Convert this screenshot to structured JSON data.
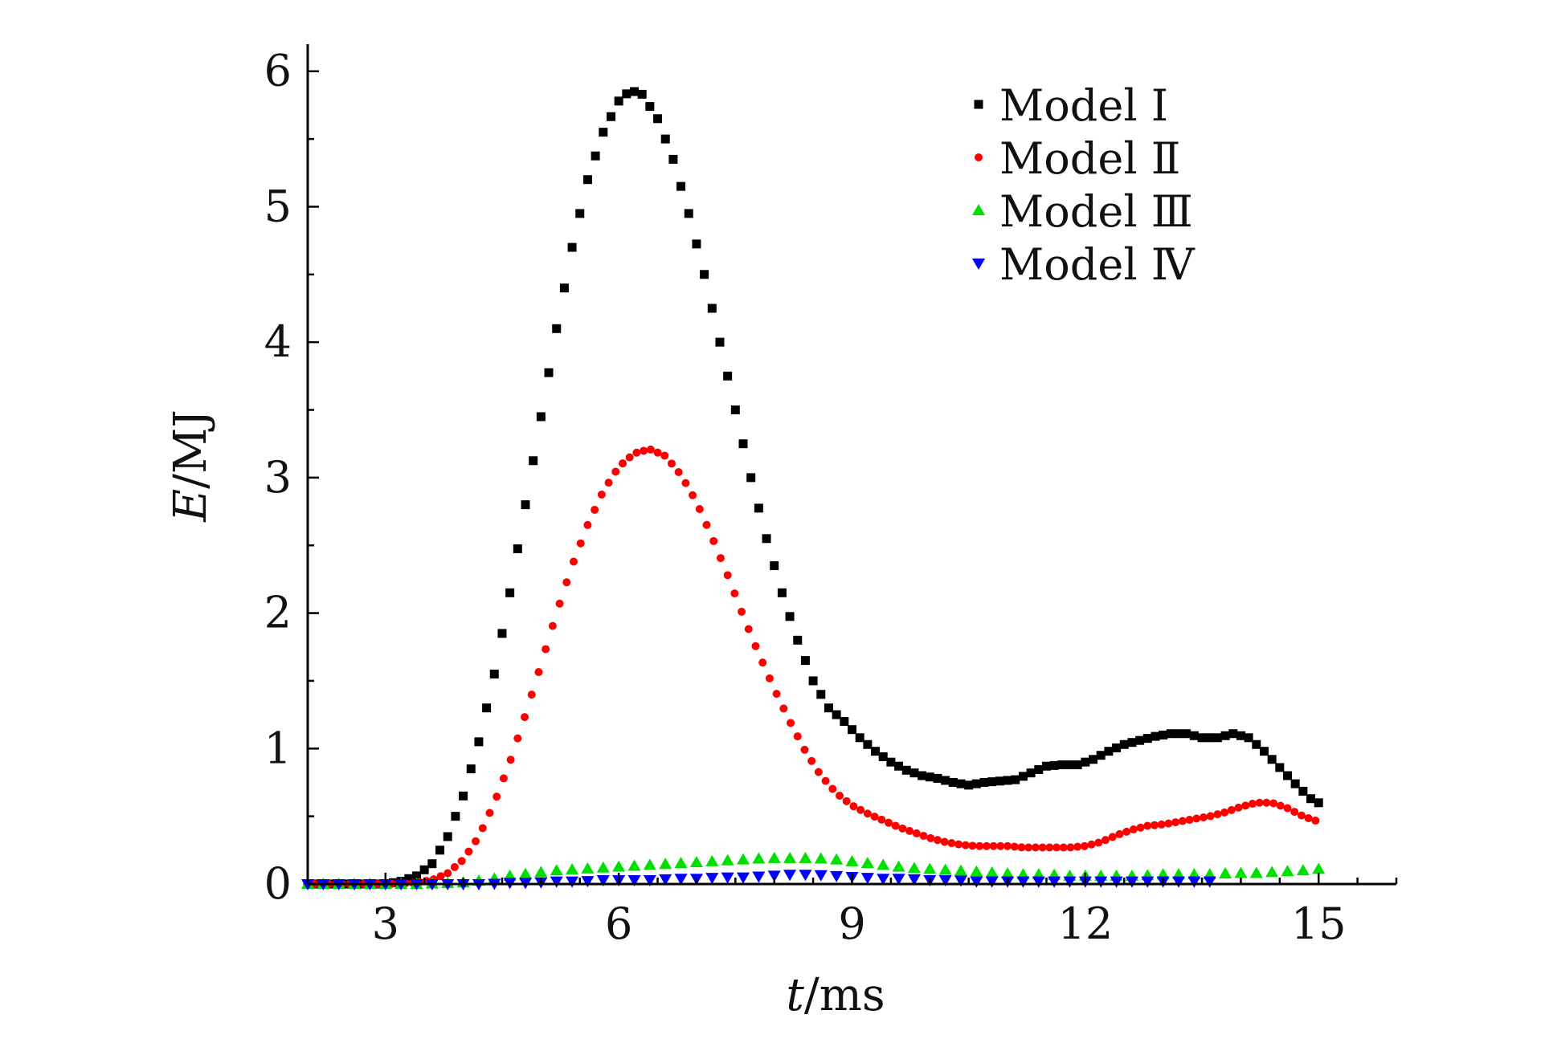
{
  "chart_data": {
    "type": "scatter",
    "xlabel_var": "t",
    "xlabel_unit": "/ms",
    "ylabel_var": "E",
    "ylabel_unit": "/MJ",
    "xlim": [
      2.0,
      16.0
    ],
    "ylim": [
      0,
      6.2
    ],
    "xticks": [
      3,
      6,
      9,
      12,
      15
    ],
    "yticks": [
      0,
      1,
      2,
      3,
      4,
      5,
      6
    ],
    "legend_position": "top-right",
    "series": [
      {
        "name": "Model Ⅰ",
        "color": "#000000",
        "marker": "square",
        "points": [
          [
            2.0,
            0
          ],
          [
            2.5,
            0
          ],
          [
            3.0,
            0
          ],
          [
            3.2,
            0.02
          ],
          [
            3.4,
            0.06
          ],
          [
            3.6,
            0.15
          ],
          [
            3.8,
            0.35
          ],
          [
            4.0,
            0.65
          ],
          [
            4.2,
            1.05
          ],
          [
            4.4,
            1.55
          ],
          [
            4.6,
            2.15
          ],
          [
            4.8,
            2.8
          ],
          [
            5.0,
            3.45
          ],
          [
            5.2,
            4.1
          ],
          [
            5.4,
            4.7
          ],
          [
            5.6,
            5.2
          ],
          [
            5.8,
            5.55
          ],
          [
            6.0,
            5.78
          ],
          [
            6.15,
            5.86
          ],
          [
            6.3,
            5.83
          ],
          [
            6.5,
            5.65
          ],
          [
            6.7,
            5.35
          ],
          [
            6.9,
            4.95
          ],
          [
            7.1,
            4.5
          ],
          [
            7.3,
            4.0
          ],
          [
            7.5,
            3.5
          ],
          [
            7.7,
            3.0
          ],
          [
            7.9,
            2.55
          ],
          [
            8.1,
            2.15
          ],
          [
            8.3,
            1.8
          ],
          [
            8.5,
            1.5
          ],
          [
            8.7,
            1.3
          ],
          [
            8.9,
            1.2
          ],
          [
            9.1,
            1.08
          ],
          [
            9.3,
            0.98
          ],
          [
            9.5,
            0.9
          ],
          [
            9.7,
            0.84
          ],
          [
            9.9,
            0.8
          ],
          [
            10.1,
            0.78
          ],
          [
            10.3,
            0.75
          ],
          [
            10.5,
            0.73
          ],
          [
            10.7,
            0.75
          ],
          [
            10.9,
            0.76
          ],
          [
            11.1,
            0.77
          ],
          [
            11.3,
            0.82
          ],
          [
            11.5,
            0.87
          ],
          [
            11.7,
            0.88
          ],
          [
            11.9,
            0.88
          ],
          [
            12.1,
            0.92
          ],
          [
            12.3,
            0.98
          ],
          [
            12.5,
            1.03
          ],
          [
            12.7,
            1.06
          ],
          [
            12.9,
            1.09
          ],
          [
            13.1,
            1.11
          ],
          [
            13.3,
            1.11
          ],
          [
            13.5,
            1.08
          ],
          [
            13.7,
            1.08
          ],
          [
            13.9,
            1.11
          ],
          [
            14.1,
            1.08
          ],
          [
            14.3,
            0.98
          ],
          [
            14.5,
            0.86
          ],
          [
            14.7,
            0.74
          ],
          [
            14.9,
            0.63
          ],
          [
            15.0,
            0.6
          ]
        ]
      },
      {
        "name": "Model Ⅱ",
        "color": "#ff0000",
        "marker": "circle",
        "points": [
          [
            2.0,
            0
          ],
          [
            2.5,
            0
          ],
          [
            3.0,
            0
          ],
          [
            3.4,
            0.01
          ],
          [
            3.6,
            0.03
          ],
          [
            3.8,
            0.08
          ],
          [
            4.0,
            0.18
          ],
          [
            4.2,
            0.35
          ],
          [
            4.4,
            0.6
          ],
          [
            4.6,
            0.9
          ],
          [
            4.8,
            1.25
          ],
          [
            5.0,
            1.62
          ],
          [
            5.2,
            2.0
          ],
          [
            5.4,
            2.35
          ],
          [
            5.6,
            2.65
          ],
          [
            5.8,
            2.9
          ],
          [
            6.0,
            3.08
          ],
          [
            6.2,
            3.18
          ],
          [
            6.4,
            3.21
          ],
          [
            6.6,
            3.16
          ],
          [
            6.8,
            3.02
          ],
          [
            7.0,
            2.82
          ],
          [
            7.2,
            2.56
          ],
          [
            7.4,
            2.28
          ],
          [
            7.6,
            1.98
          ],
          [
            7.8,
            1.7
          ],
          [
            8.0,
            1.44
          ],
          [
            8.2,
            1.2
          ],
          [
            8.4,
            0.98
          ],
          [
            8.6,
            0.8
          ],
          [
            8.8,
            0.67
          ],
          [
            9.0,
            0.58
          ],
          [
            9.2,
            0.52
          ],
          [
            9.4,
            0.47
          ],
          [
            9.6,
            0.42
          ],
          [
            9.8,
            0.38
          ],
          [
            10.0,
            0.34
          ],
          [
            10.2,
            0.31
          ],
          [
            10.4,
            0.29
          ],
          [
            10.6,
            0.28
          ],
          [
            10.8,
            0.28
          ],
          [
            11.0,
            0.28
          ],
          [
            11.2,
            0.27
          ],
          [
            11.4,
            0.27
          ],
          [
            11.6,
            0.27
          ],
          [
            11.8,
            0.27
          ],
          [
            12.0,
            0.28
          ],
          [
            12.2,
            0.31
          ],
          [
            12.4,
            0.36
          ],
          [
            12.6,
            0.4
          ],
          [
            12.8,
            0.43
          ],
          [
            13.0,
            0.44
          ],
          [
            13.2,
            0.46
          ],
          [
            13.4,
            0.48
          ],
          [
            13.6,
            0.5
          ],
          [
            13.8,
            0.53
          ],
          [
            14.0,
            0.57
          ],
          [
            14.2,
            0.6
          ],
          [
            14.4,
            0.6
          ],
          [
            14.6,
            0.56
          ],
          [
            14.8,
            0.5
          ],
          [
            15.0,
            0.46
          ]
        ]
      },
      {
        "name": "Model Ⅲ",
        "color": "#00e000",
        "marker": "triangle-up",
        "points": [
          [
            2.0,
            0
          ],
          [
            2.5,
            0
          ],
          [
            3.0,
            0
          ],
          [
            3.5,
            0
          ],
          [
            4.0,
            0.01
          ],
          [
            4.3,
            0.03
          ],
          [
            4.6,
            0.06
          ],
          [
            4.9,
            0.08
          ],
          [
            5.2,
            0.1
          ],
          [
            5.5,
            0.11
          ],
          [
            5.8,
            0.12
          ],
          [
            6.1,
            0.13
          ],
          [
            6.4,
            0.14
          ],
          [
            6.7,
            0.15
          ],
          [
            7.0,
            0.16
          ],
          [
            7.3,
            0.17
          ],
          [
            7.6,
            0.18
          ],
          [
            7.9,
            0.19
          ],
          [
            8.2,
            0.19
          ],
          [
            8.5,
            0.19
          ],
          [
            8.8,
            0.18
          ],
          [
            9.1,
            0.16
          ],
          [
            9.4,
            0.14
          ],
          [
            9.7,
            0.12
          ],
          [
            10.0,
            0.11
          ],
          [
            10.3,
            0.1
          ],
          [
            10.6,
            0.09
          ],
          [
            10.9,
            0.08
          ],
          [
            11.2,
            0.07
          ],
          [
            11.5,
            0.07
          ],
          [
            11.8,
            0.06
          ],
          [
            12.1,
            0.06
          ],
          [
            12.4,
            0.06
          ],
          [
            12.7,
            0.06
          ],
          [
            13.0,
            0.07
          ],
          [
            13.3,
            0.07
          ],
          [
            13.6,
            0.07
          ],
          [
            13.9,
            0.08
          ],
          [
            14.2,
            0.08
          ],
          [
            14.5,
            0.09
          ],
          [
            14.8,
            0.1
          ],
          [
            15.0,
            0.11
          ]
        ]
      },
      {
        "name": "Model Ⅳ",
        "color": "#0000ff",
        "marker": "triangle-down",
        "points": [
          [
            2.0,
            0
          ],
          [
            2.5,
            0
          ],
          [
            3.0,
            0
          ],
          [
            3.5,
            0
          ],
          [
            4.0,
            0
          ],
          [
            4.3,
            0
          ],
          [
            4.6,
            0.01
          ],
          [
            4.9,
            0.01
          ],
          [
            5.2,
            0.02
          ],
          [
            5.5,
            0.02
          ],
          [
            5.8,
            0.03
          ],
          [
            6.1,
            0.03
          ],
          [
            6.4,
            0.03
          ],
          [
            6.7,
            0.04
          ],
          [
            7.0,
            0.04
          ],
          [
            7.3,
            0.05
          ],
          [
            7.6,
            0.05
          ],
          [
            7.9,
            0.06
          ],
          [
            8.2,
            0.07
          ],
          [
            8.5,
            0.07
          ],
          [
            8.8,
            0.06
          ],
          [
            9.1,
            0.05
          ],
          [
            9.4,
            0.04
          ],
          [
            9.7,
            0.04
          ],
          [
            10.0,
            0.03
          ],
          [
            10.3,
            0.03
          ],
          [
            10.6,
            0.02
          ],
          [
            10.9,
            0.02
          ],
          [
            11.2,
            0.02
          ],
          [
            11.5,
            0.02
          ],
          [
            11.8,
            0.02
          ],
          [
            12.1,
            0.02
          ],
          [
            12.4,
            0.02
          ],
          [
            12.7,
            0.02
          ],
          [
            13.0,
            0.02
          ],
          [
            13.3,
            0.02
          ],
          [
            13.6,
            0.02
          ]
        ]
      }
    ]
  }
}
